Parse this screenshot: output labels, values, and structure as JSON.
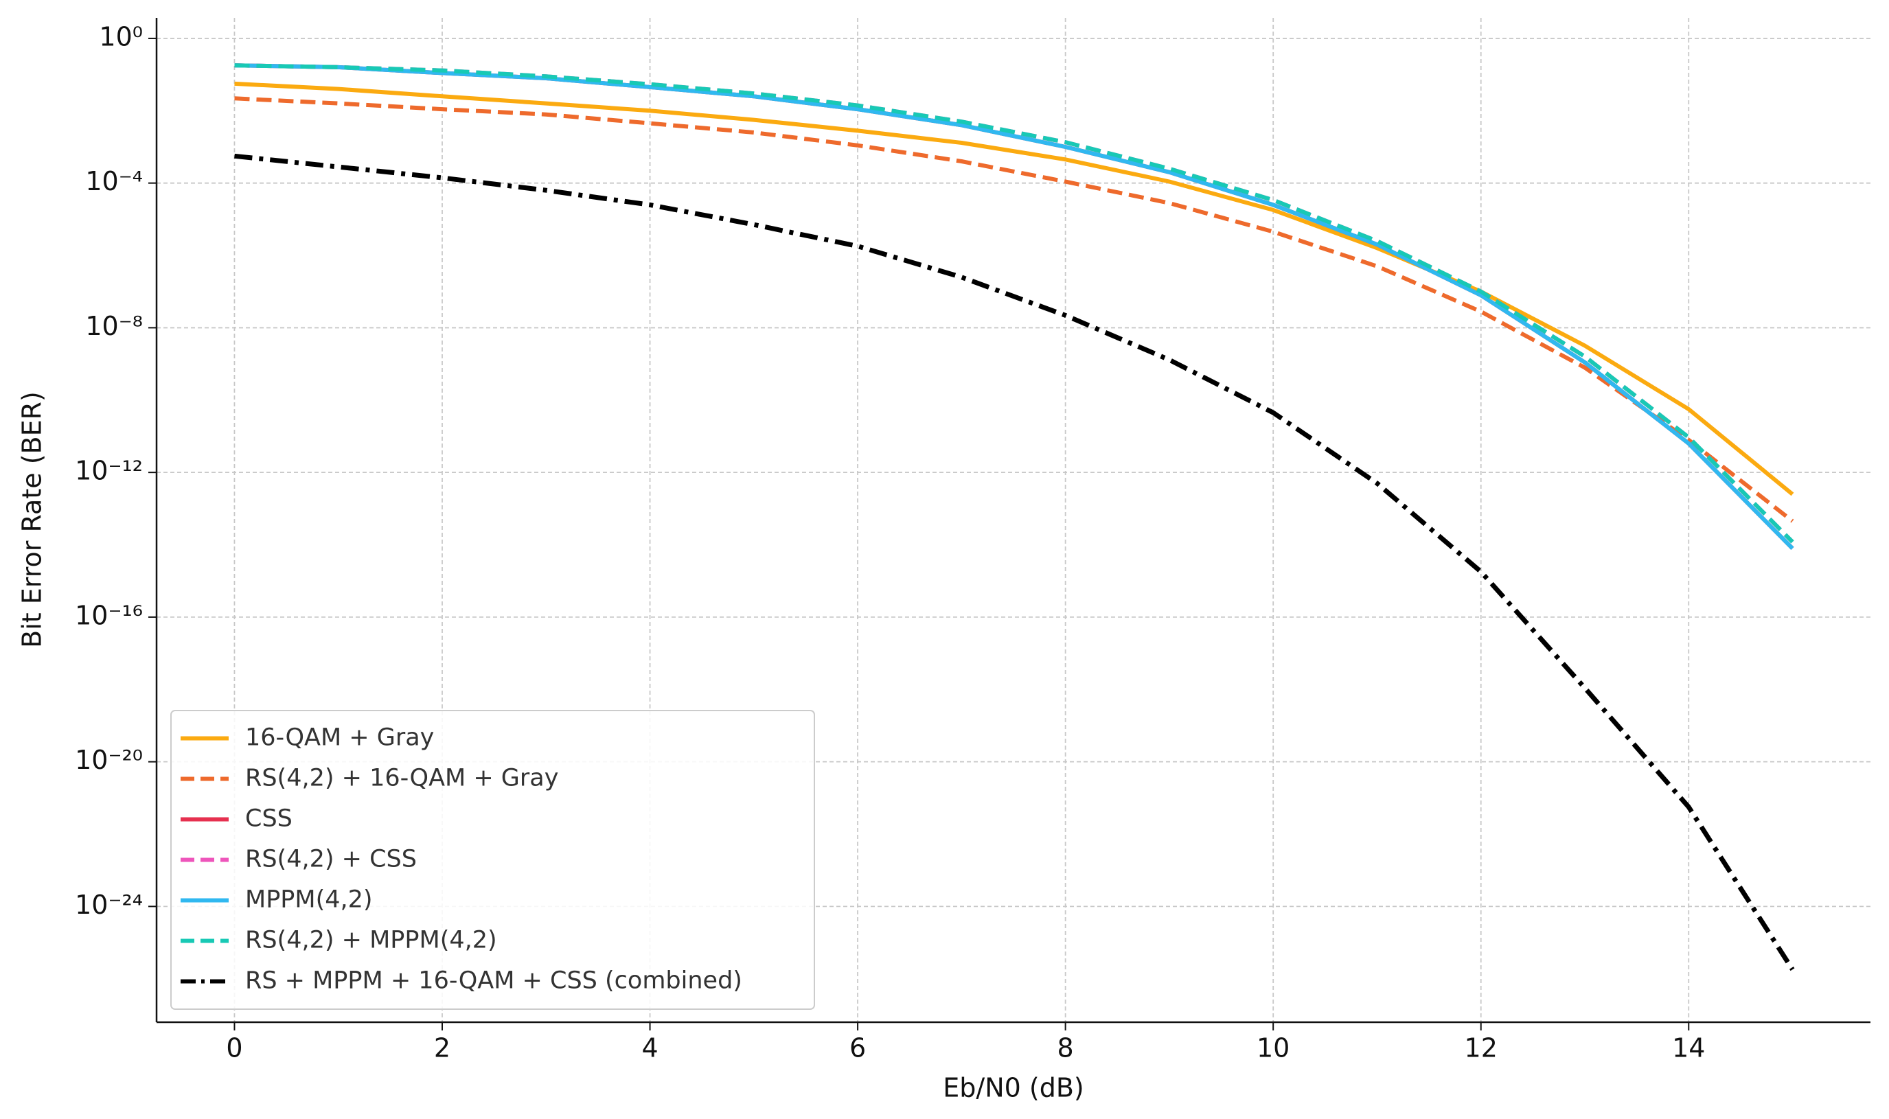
{
  "chart_data": {
    "type": "line",
    "xlabel": "Eb/N0 (dB)",
    "ylabel": "Bit Error Rate (BER)",
    "x": [
      0,
      1,
      2,
      3,
      4,
      5,
      6,
      7,
      8,
      9,
      10,
      11,
      12,
      13,
      14,
      15
    ],
    "xlim": [
      -0.75,
      15.75
    ],
    "xticks": [
      0,
      2,
      4,
      6,
      8,
      10,
      12,
      14
    ],
    "ylog": true,
    "ylim": [
      6.3e-28,
      3.7
    ],
    "yticks": [
      {
        "value": 1,
        "label": "10⁰"
      },
      {
        "value": 0.0001,
        "label": "10⁻⁴"
      },
      {
        "value": 1e-08,
        "label": "10⁻⁸"
      },
      {
        "value": 1e-12,
        "label": "10⁻¹²"
      },
      {
        "value": 1e-16,
        "label": "10⁻¹⁶"
      },
      {
        "value": 1e-20,
        "label": "10⁻²⁰"
      },
      {
        "value": 1e-24,
        "label": "10⁻²⁴"
      }
    ],
    "grid": true,
    "legend": "lower left",
    "series": [
      {
        "name": "16-QAM + Gray",
        "color": "#fbaa10",
        "style": "solid",
        "values": [
          0.056,
          0.04,
          0.025,
          0.016,
          0.01,
          0.0056,
          0.0028,
          0.0013,
          0.00045,
          0.00011,
          1.8e-05,
          1.6e-06,
          1e-07,
          3.2e-09,
          5.6e-11,
          2.5e-13
        ]
      },
      {
        "name": "RS(4,2) + 16-QAM + Gray",
        "color": "#ee6a2c",
        "style": "dashed",
        "values": [
          0.022,
          0.016,
          0.011,
          0.0079,
          0.0045,
          0.0025,
          0.0011,
          0.0004,
          0.00011,
          2.8e-05,
          4.5e-06,
          5e-07,
          2.8e-08,
          7.9e-10,
          7.9e-12,
          4.5e-14
        ]
      },
      {
        "name": "CSS",
        "color": "#e6304f",
        "style": "solid",
        "values": [
          0.18,
          0.16,
          0.11,
          0.079,
          0.045,
          0.025,
          0.011,
          0.004,
          0.001,
          0.0002,
          2.5e-05,
          2e-06,
          7.9e-08,
          1.1e-09,
          6.3e-12,
          7.9e-15
        ]
      },
      {
        "name": "RS(4,2) + CSS",
        "color": "#ee55bb",
        "style": "dashed",
        "values": [
          0.18,
          0.16,
          0.13,
          0.089,
          0.054,
          0.03,
          0.014,
          0.005,
          0.00135,
          0.00025,
          3.4e-05,
          2.5e-06,
          1e-07,
          1.6e-09,
          9.3e-12,
          1.2e-14
        ]
      },
      {
        "name": "MPPM(4,2)",
        "color": "#30b8f0",
        "style": "solid",
        "values": [
          0.18,
          0.16,
          0.11,
          0.079,
          0.045,
          0.025,
          0.011,
          0.004,
          0.001,
          0.0002,
          2.5e-05,
          2e-06,
          7.9e-08,
          1.1e-09,
          6.3e-12,
          7.9e-15
        ]
      },
      {
        "name": "RS(4,2) + MPPM(4,2)",
        "color": "#18c9b5",
        "style": "dashed",
        "values": [
          0.18,
          0.16,
          0.13,
          0.089,
          0.054,
          0.03,
          0.014,
          0.005,
          0.00135,
          0.00025,
          3.4e-05,
          2.5e-06,
          1e-07,
          1.6e-09,
          9.3e-12,
          1.2e-14
        ]
      },
      {
        "name": "RS + MPPM + 16-QAM + CSS (combined)",
        "color": "#000000",
        "style": "dashdot",
        "values": [
          0.00056,
          0.00028,
          0.00014,
          6.3e-05,
          2.5e-05,
          7.1e-06,
          1.8e-06,
          2.5e-07,
          2.2e-08,
          1.3e-09,
          4.5e-11,
          5e-13,
          1.8e-15,
          1.1e-18,
          5.6e-22,
          1.8e-26
        ]
      }
    ]
  }
}
